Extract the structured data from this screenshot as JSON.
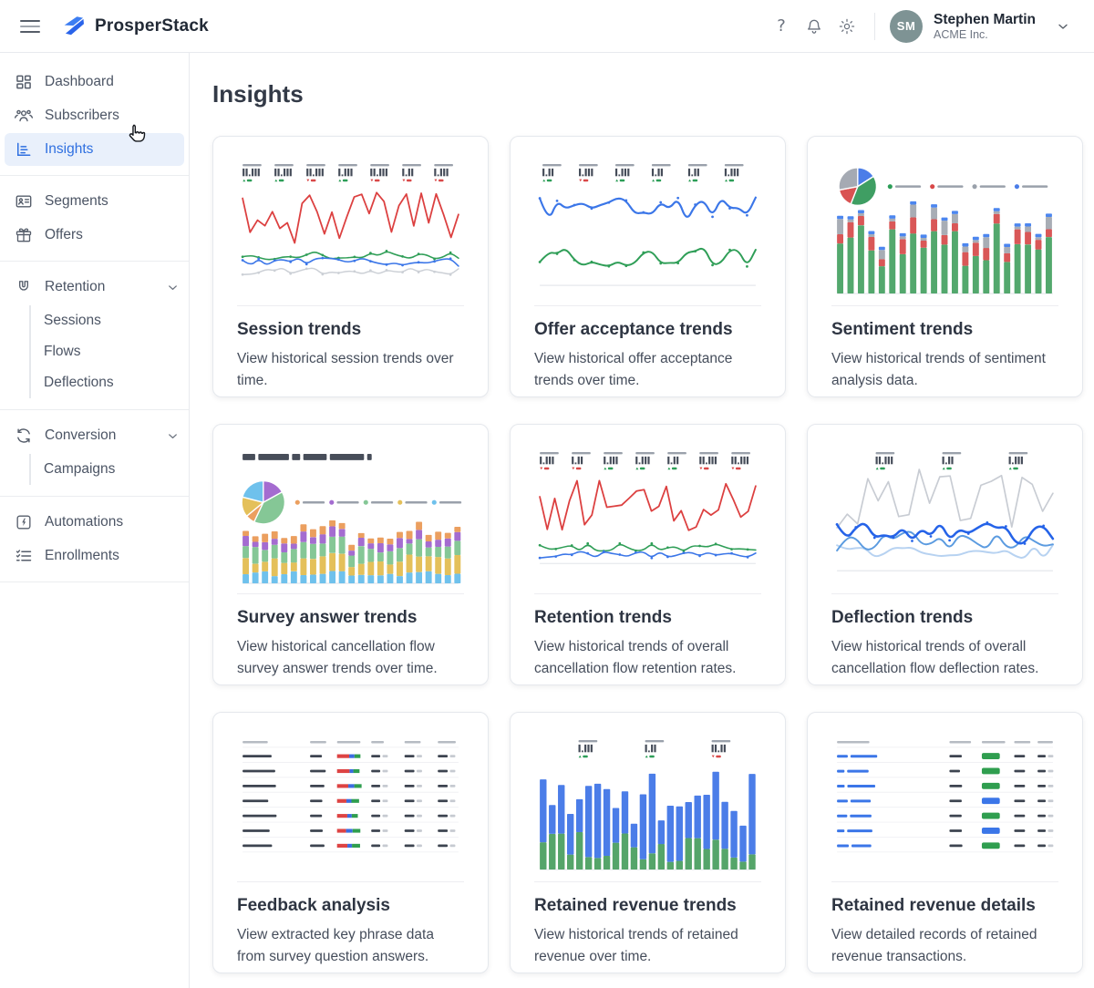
{
  "header": {
    "brand": "ProsperStack",
    "icons": [
      "menu-icon",
      "help-icon",
      "bell-icon",
      "gear-icon",
      "chevron-down-icon"
    ],
    "user": {
      "initials": "SM",
      "name": "Stephen Martin",
      "company": "ACME Inc."
    }
  },
  "sidebar": {
    "groups": [
      {
        "items": [
          {
            "label": "Dashboard",
            "icon": "dashboard"
          },
          {
            "label": "Subscribers",
            "icon": "users"
          },
          {
            "label": "Insights",
            "icon": "insights",
            "active": true
          }
        ]
      },
      {
        "items": [
          {
            "label": "Segments",
            "icon": "segments"
          },
          {
            "label": "Offers",
            "icon": "gift"
          }
        ]
      },
      {
        "items": [
          {
            "label": "Retention",
            "icon": "magnet",
            "children": [
              "Sessions",
              "Flows",
              "Deflections"
            ]
          }
        ]
      },
      {
        "items": [
          {
            "label": "Conversion",
            "icon": "convert",
            "children": [
              "Campaigns"
            ]
          }
        ]
      },
      {
        "items": [
          {
            "label": "Automations",
            "icon": "bolt"
          },
          {
            "label": "Enrollments",
            "icon": "checklist"
          }
        ]
      }
    ]
  },
  "main": {
    "title": "Insights",
    "cards": [
      {
        "title": "Session trends",
        "description": "View historical session trends over time.",
        "thumbnail": "sessions"
      },
      {
        "title": "Offer acceptance trends",
        "description": "View historical offer acceptance trends over time.",
        "thumbnail": "offer-acceptance"
      },
      {
        "title": "Sentiment trends",
        "description": "View historical trends of sentiment analysis data.",
        "thumbnail": "sentiment"
      },
      {
        "title": "Survey answer trends",
        "description": "View historical cancellation flow survey answer trends over time.",
        "thumbnail": "survey-answers"
      },
      {
        "title": "Retention trends",
        "description": "View historical trends of overall cancellation flow retention rates.",
        "thumbnail": "retention"
      },
      {
        "title": "Deflection trends",
        "description": "View historical trends of overall cancellation flow deflection rates.",
        "thumbnail": "deflection"
      },
      {
        "title": "Feedback analysis",
        "description": "View extracted key phrase data from survey question answers.",
        "thumbnail": "feedback"
      },
      {
        "title": "Retained revenue trends",
        "description": "View historical trends of retained revenue over time.",
        "thumbnail": "retained-revenue"
      },
      {
        "title": "Retained revenue details",
        "description": "View detailed records of retained revenue transactions.",
        "thumbnail": "revenue-details"
      }
    ]
  },
  "colors": {
    "accent_blue": "#2e6fe0",
    "active_bg": "#e9f0fb",
    "chart_red": "#dc4545",
    "chart_green": "#2f9e57",
    "chart_blue": "#3b76e8",
    "chart_gray": "#c9cdd4",
    "avatar_bg": "#7e9394"
  }
}
